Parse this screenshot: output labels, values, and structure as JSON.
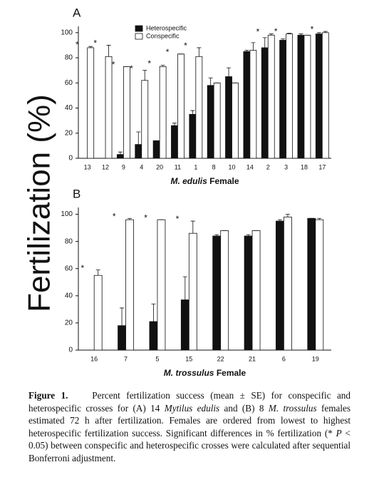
{
  "y_label": "Fertilization (%)",
  "chart_data": [
    {
      "type": "bar",
      "title": "A",
      "x_label": [
        "M. edulis",
        "Female"
      ],
      "categories": [
        "13",
        "12",
        "9",
        "4",
        "20",
        "11",
        "1",
        "8",
        "10",
        "14",
        "2",
        "3",
        "18",
        "17"
      ],
      "series": [
        {
          "name": "Heterospecific",
          "color": "#111111",
          "values": [
            0,
            0,
            3,
            11,
            14,
            26,
            35,
            58,
            65,
            85,
            88,
            94,
            98,
            99
          ],
          "errors": [
            0,
            0,
            2,
            10,
            0,
            2,
            3,
            6,
            7,
            1,
            8,
            1,
            1,
            1
          ]
        },
        {
          "name": "Conspecific",
          "color": "#ffffff",
          "values": [
            88,
            81,
            73,
            62,
            73,
            83,
            81,
            60,
            60,
            86,
            98,
            99,
            98,
            100
          ],
          "errors": [
            1,
            9,
            0,
            8,
            1,
            0,
            7,
            0,
            0,
            6,
            1,
            0.5,
            0,
            1
          ]
        }
      ],
      "significance": [
        "*",
        "*",
        "*",
        "*",
        "*",
        "*",
        "*",
        null,
        null,
        null,
        "*",
        "*",
        null,
        "*"
      ],
      "ylim": [
        0,
        105
      ],
      "yticks": [
        0,
        20,
        40,
        60,
        80,
        100
      ],
      "legend": "top-left"
    },
    {
      "type": "bar",
      "title": "B",
      "x_label": [
        "M. trossulus",
        "Female"
      ],
      "categories": [
        "16",
        "7",
        "5",
        "15",
        "22",
        "21",
        "6",
        "19"
      ],
      "series": [
        {
          "color": "#111111",
          "values": [
            0,
            18,
            21,
            37,
            84,
            84,
            95,
            97
          ],
          "errors": [
            0,
            13,
            13,
            17,
            1,
            1,
            1,
            0
          ]
        },
        {
          "color": "#ffffff",
          "values": [
            55,
            96,
            96,
            86,
            88,
            88,
            98,
            96
          ],
          "errors": [
            4,
            1,
            0,
            9,
            0,
            0,
            2,
            1
          ]
        }
      ],
      "significance": [
        "*",
        "*",
        "*",
        "*",
        null,
        null,
        null,
        null
      ],
      "ylim": [
        0,
        105
      ],
      "yticks": [
        0,
        20,
        40,
        60,
        80,
        100
      ]
    }
  ],
  "caption": {
    "label": "Figure 1.",
    "runs": [
      "Percent fertilization success (mean ± SE) for conspecific and heterospecific crosses for (A) 14 ",
      "Mytilus edulis",
      " and (B) 8 ",
      "M. trossulus",
      " females estimated 72 h after fertilization. Females are ordered from lowest to highest heterospecific fertilization success. Significant differences in % fertilization (* ",
      "P",
      " < 0.05) between conspecific and heterospecific crosses were calculated after sequential Bonferroni adjustment."
    ]
  }
}
